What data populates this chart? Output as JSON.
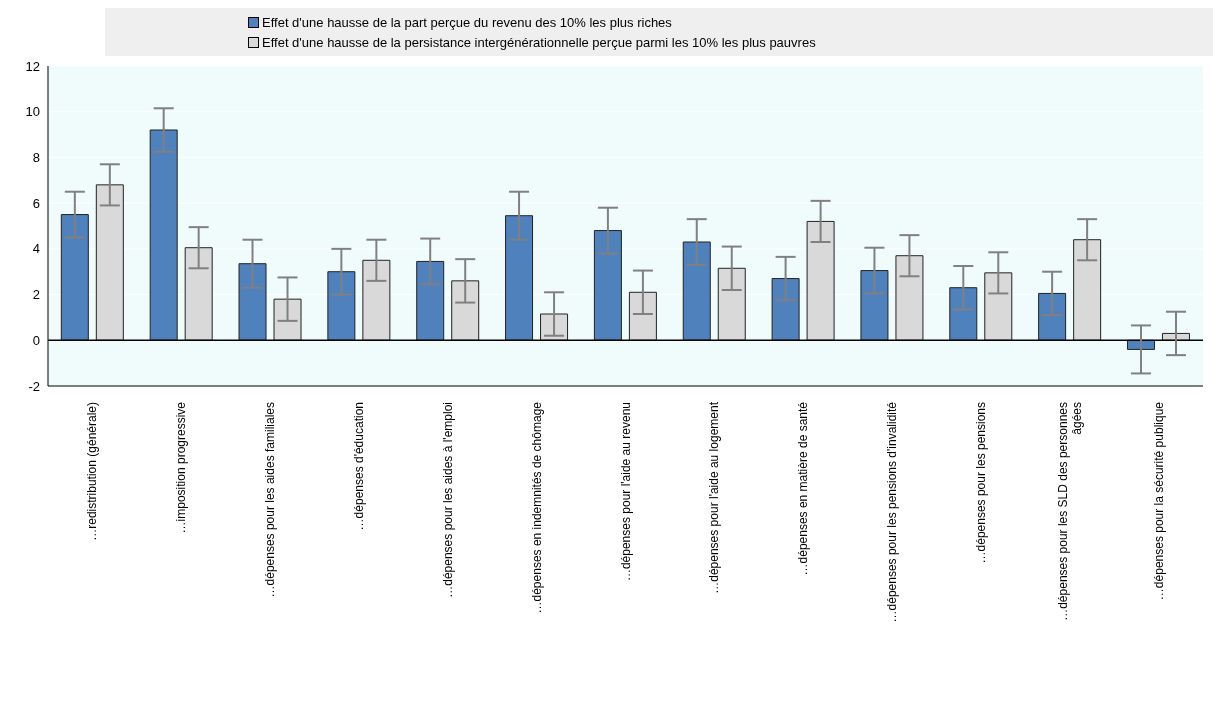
{
  "chart_data": {
    "type": "bar",
    "categories": [
      "…redistribution (générale)",
      "…imposition progressive",
      "…dépenses pour les aides familiales",
      "…dépenses d'éducation",
      "…dépenses pour les aides à l'emploi",
      "…dépenses en indemnités de chômage",
      "…dépenses pour l'aide au revenu",
      "…dépenses pour l'aide au logement",
      "…dépenses en matière de santé",
      "…dépenses pour les pensions d'invalidité",
      "…dépenses pour les pensions",
      "…dépenses pour les SLD des personnes âgées",
      "…dépenses pour la sécurité publique"
    ],
    "series": [
      {
        "name": "Effet d'une hausse de la part perçue du revenu des 10% les plus riches",
        "color": "#4f81bd",
        "values": [
          5.5,
          9.2,
          3.35,
          3.0,
          3.45,
          5.45,
          4.8,
          4.3,
          2.7,
          3.05,
          2.3,
          2.05,
          -0.4
        ],
        "errors": [
          1.0,
          0.95,
          1.05,
          1.0,
          1.0,
          1.05,
          1.0,
          1.0,
          0.95,
          1.0,
          0.95,
          0.95,
          1.05
        ]
      },
      {
        "name": "Effet d'une hausse de la persistance intergénérationnelle perçue parmi les 10% les plus pauvres",
        "color": "#d9d9d9",
        "values": [
          6.8,
          4.05,
          1.8,
          3.5,
          2.6,
          1.15,
          2.1,
          3.15,
          5.2,
          3.7,
          2.95,
          4.4,
          0.3
        ],
        "errors": [
          0.9,
          0.9,
          0.95,
          0.9,
          0.95,
          0.95,
          0.95,
          0.95,
          0.9,
          0.9,
          0.9,
          0.9,
          0.95
        ]
      }
    ],
    "ylim": [
      -2,
      12
    ],
    "yticks": [
      -2,
      0,
      2,
      4,
      6,
      8,
      10,
      12
    ],
    "grid": "y",
    "legend": "top"
  }
}
